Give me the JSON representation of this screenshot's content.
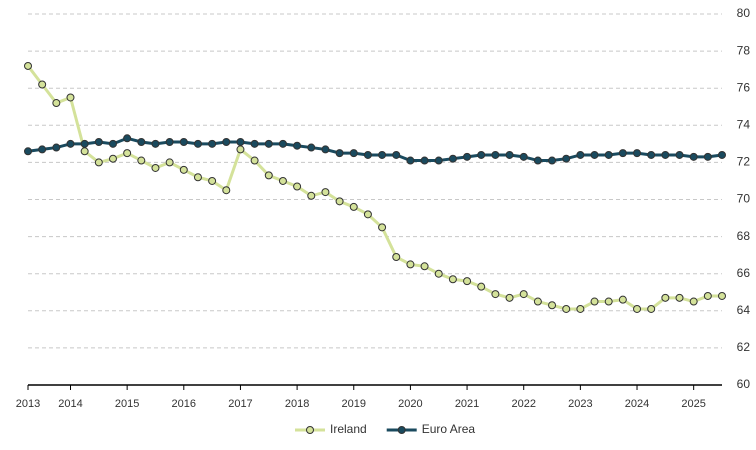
{
  "chart_data": {
    "type": "line",
    "categories": [
      "2013",
      null,
      null,
      "2014",
      null,
      null,
      null,
      "2015",
      null,
      null,
      null,
      "2016",
      null,
      null,
      null,
      "2017",
      null,
      null,
      null,
      "2018",
      null,
      null,
      null,
      "2019",
      null,
      null,
      null,
      "2020",
      null,
      null,
      null,
      "2021",
      null,
      null,
      null,
      "2022",
      null,
      null,
      null,
      "2023",
      null,
      null,
      null,
      "2024",
      null,
      null,
      null,
      "2025",
      null,
      null
    ],
    "series": [
      {
        "name": "Ireland",
        "color": "#d4e29a",
        "values": [
          77.2,
          76.2,
          75.2,
          75.5,
          72.6,
          72.0,
          72.2,
          72.5,
          72.1,
          71.7,
          72.0,
          71.6,
          71.2,
          71.0,
          70.5,
          72.7,
          72.1,
          71.3,
          71.0,
          70.7,
          70.2,
          70.4,
          69.9,
          69.6,
          69.2,
          68.5,
          66.9,
          66.5,
          66.4,
          66.0,
          65.7,
          65.6,
          65.3,
          64.9,
          64.7,
          64.9,
          64.5,
          64.3,
          64.1,
          64.1,
          64.5,
          64.5,
          64.6,
          64.1,
          64.1,
          64.7,
          64.7,
          64.5,
          64.8,
          64.8
        ]
      },
      {
        "name": "Euro Area",
        "color": "#1a4a5e",
        "values": [
          72.6,
          72.7,
          72.8,
          73.0,
          73.0,
          73.1,
          73.0,
          73.3,
          73.1,
          73.0,
          73.1,
          73.1,
          73.0,
          73.0,
          73.1,
          73.1,
          73.0,
          73.0,
          73.0,
          72.9,
          72.8,
          72.7,
          72.5,
          72.5,
          72.4,
          72.4,
          72.4,
          72.1,
          72.1,
          72.1,
          72.2,
          72.3,
          72.4,
          72.4,
          72.4,
          72.3,
          72.1,
          72.1,
          72.2,
          72.4,
          72.4,
          72.4,
          72.5,
          72.5,
          72.4,
          72.4,
          72.4,
          72.3,
          72.3,
          72.4
        ]
      }
    ],
    "ylim": [
      60,
      80
    ],
    "yticks": [
      60,
      62,
      64,
      66,
      68,
      70,
      72,
      74,
      76,
      78,
      80
    ],
    "grid": true,
    "legend": "bottom"
  }
}
